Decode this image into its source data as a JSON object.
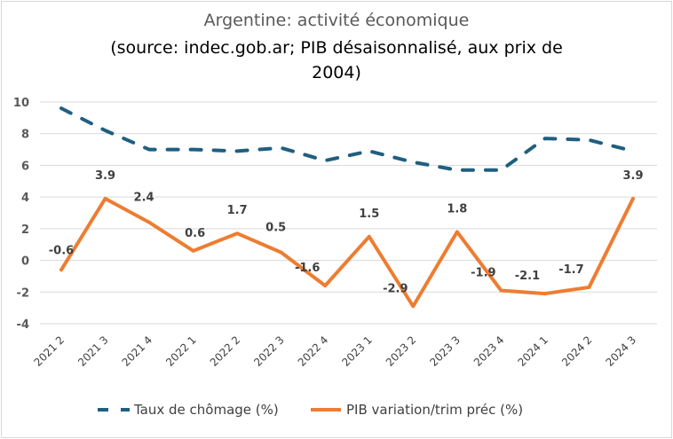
{
  "chart_data": {
    "type": "line",
    "title": "Argentine: activité économique",
    "subtitle": "(source: indec.gob.ar; PIB désaisonnalisé, aux prix de 2004)",
    "subtitle_line1": "(source: indec.gob.ar; PIB désaisonnalisé, aux prix de",
    "subtitle_line2": "2004)",
    "xlabel": "",
    "ylabel": "",
    "ylim": [
      -4,
      10
    ],
    "yticks": [
      "10",
      "8",
      "6",
      "4",
      "2",
      "0",
      "-2",
      "-4"
    ],
    "ytick_values": [
      10,
      8,
      6,
      4,
      2,
      0,
      -2,
      -4
    ],
    "grid": true,
    "legend_position": "bottom",
    "categories": [
      "2021 2",
      "2021 3",
      "2021 4",
      "2022 1",
      "2022 2",
      "2022 3",
      "2022 4",
      "2023 1",
      "2023 2",
      "2023 3",
      "2023 4",
      "2024 1",
      "2024 2",
      "2024 3"
    ],
    "series": [
      {
        "name": "Taux de chômage (%)",
        "color": "#1F5F80",
        "style": "dashed",
        "values": [
          9.6,
          8.2,
          7.0,
          7.0,
          6.9,
          7.1,
          6.3,
          6.9,
          6.2,
          5.7,
          5.7,
          7.7,
          7.6,
          6.9
        ],
        "data_labels": false
      },
      {
        "name": "PIB variation/trim préc (%)",
        "color": "#ED7D31",
        "style": "solid",
        "values": [
          -0.6,
          3.9,
          2.4,
          0.6,
          1.7,
          0.5,
          -1.6,
          1.5,
          -2.9,
          1.8,
          -1.9,
          -2.1,
          -1.7,
          3.9
        ],
        "data_labels": true,
        "labels": [
          "-0.6",
          "3.9",
          "2.4",
          "0.6",
          "1.7",
          "0.5",
          "-1.6",
          "1.5",
          "-2.9",
          "1.8",
          "-1.9",
          "-2.1",
          "-1.7",
          "3.9"
        ]
      }
    ]
  }
}
